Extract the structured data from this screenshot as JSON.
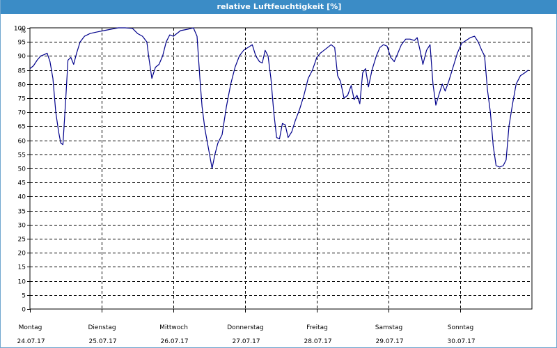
{
  "window": {
    "title": "relative Luftfeuchtigkeit [%]"
  },
  "chart_data": {
    "type": "line",
    "title": "relative Luftfeuchtigkeit [%]",
    "ylabel": "%",
    "xlabel": "",
    "ylim": [
      0,
      100
    ],
    "ytick_step": 5,
    "grid": true,
    "line_color": "#00008b",
    "x_ticks": [
      {
        "day": "Montag",
        "date": "24.07.17"
      },
      {
        "day": "Dienstag",
        "date": "25.07.17"
      },
      {
        "day": "Mittwoch",
        "date": "26.07.17"
      },
      {
        "day": "Donnerstag",
        "date": "27.07.17"
      },
      {
        "day": "Freitag",
        "date": "28.07.17"
      },
      {
        "day": "Samstag",
        "date": "29.07.17"
      },
      {
        "day": "Sonntag",
        "date": "30.07.17"
      }
    ],
    "x_unit": "days since Montag 24.07.17 00:00",
    "xlim": [
      0,
      7
    ],
    "series": [
      {
        "name": "relative Luftfeuchtigkeit",
        "points": [
          [
            0.0,
            85.5
          ],
          [
            0.05,
            86.5
          ],
          [
            0.1,
            88.5
          ],
          [
            0.15,
            90
          ],
          [
            0.2,
            90.5
          ],
          [
            0.24,
            91
          ],
          [
            0.28,
            88
          ],
          [
            0.32,
            82
          ],
          [
            0.36,
            70
          ],
          [
            0.4,
            63
          ],
          [
            0.43,
            59
          ],
          [
            0.46,
            58.5
          ],
          [
            0.5,
            75
          ],
          [
            0.53,
            88.5
          ],
          [
            0.57,
            89.5
          ],
          [
            0.61,
            87
          ],
          [
            0.65,
            91
          ],
          [
            0.7,
            95
          ],
          [
            0.76,
            97
          ],
          [
            0.84,
            98
          ],
          [
            0.93,
            98.5
          ],
          [
            1.03,
            99
          ],
          [
            1.13,
            99.5
          ],
          [
            1.23,
            100
          ],
          [
            1.33,
            100
          ],
          [
            1.43,
            99.8
          ],
          [
            1.5,
            98
          ],
          [
            1.57,
            97
          ],
          [
            1.63,
            95
          ],
          [
            1.66,
            89
          ],
          [
            1.7,
            82
          ],
          [
            1.75,
            86
          ],
          [
            1.8,
            87
          ],
          [
            1.85,
            90
          ],
          [
            1.9,
            95
          ],
          [
            1.95,
            97.5
          ],
          [
            2.0,
            97
          ],
          [
            2.05,
            98
          ],
          [
            2.1,
            99
          ],
          [
            2.2,
            99.5
          ],
          [
            2.28,
            100
          ],
          [
            2.33,
            97
          ],
          [
            2.37,
            82
          ],
          [
            2.4,
            72
          ],
          [
            2.44,
            64
          ],
          [
            2.49,
            57
          ],
          [
            2.54,
            50
          ],
          [
            2.58,
            55
          ],
          [
            2.62,
            59
          ],
          [
            2.68,
            62
          ],
          [
            2.74,
            72
          ],
          [
            2.8,
            80
          ],
          [
            2.86,
            86
          ],
          [
            2.92,
            90
          ],
          [
            2.98,
            92
          ],
          [
            3.04,
            93
          ],
          [
            3.1,
            94
          ],
          [
            3.15,
            90
          ],
          [
            3.2,
            88
          ],
          [
            3.24,
            87.5
          ],
          [
            3.28,
            92
          ],
          [
            3.32,
            90
          ],
          [
            3.36,
            82
          ],
          [
            3.4,
            70
          ],
          [
            3.44,
            61
          ],
          [
            3.48,
            60.5
          ],
          [
            3.52,
            66
          ],
          [
            3.56,
            65.5
          ],
          [
            3.6,
            61
          ],
          [
            3.65,
            63
          ],
          [
            3.7,
            67
          ],
          [
            3.76,
            71
          ],
          [
            3.82,
            76
          ],
          [
            3.88,
            82
          ],
          [
            3.94,
            85
          ],
          [
            4.0,
            89.5
          ],
          [
            4.05,
            91
          ],
          [
            4.1,
            92
          ],
          [
            4.15,
            93
          ],
          [
            4.2,
            94
          ],
          [
            4.25,
            93
          ],
          [
            4.29,
            83
          ],
          [
            4.33,
            81
          ],
          [
            4.38,
            75
          ],
          [
            4.43,
            76
          ],
          [
            4.48,
            79.5
          ],
          [
            4.52,
            74.5
          ],
          [
            4.56,
            76
          ],
          [
            4.6,
            73
          ],
          [
            4.64,
            84
          ],
          [
            4.68,
            85.5
          ],
          [
            4.72,
            79
          ],
          [
            4.77,
            85
          ],
          [
            4.83,
            90
          ],
          [
            4.88,
            93
          ],
          [
            4.93,
            94
          ],
          [
            4.98,
            93.5
          ],
          [
            5.03,
            89.5
          ],
          [
            5.08,
            88
          ],
          [
            5.13,
            91
          ],
          [
            5.18,
            94
          ],
          [
            5.24,
            96
          ],
          [
            5.3,
            96
          ],
          [
            5.36,
            95.5
          ],
          [
            5.4,
            96.5
          ],
          [
            5.44,
            92
          ],
          [
            5.48,
            87
          ],
          [
            5.53,
            92
          ],
          [
            5.58,
            94
          ],
          [
            5.62,
            80
          ],
          [
            5.66,
            72.5
          ],
          [
            5.7,
            76
          ],
          [
            5.75,
            80
          ],
          [
            5.79,
            77.5
          ],
          [
            5.84,
            81
          ],
          [
            5.9,
            86
          ],
          [
            5.96,
            91
          ],
          [
            6.02,
            94.5
          ],
          [
            6.08,
            95.5
          ],
          [
            6.14,
            96.5
          ],
          [
            6.2,
            97
          ],
          [
            6.25,
            95
          ],
          [
            6.3,
            92
          ],
          [
            6.34,
            90
          ],
          [
            6.38,
            78
          ],
          [
            6.42,
            70
          ],
          [
            6.46,
            58
          ],
          [
            6.5,
            51
          ],
          [
            6.55,
            50.5
          ],
          [
            6.6,
            51
          ],
          [
            6.64,
            53
          ],
          [
            6.68,
            65
          ],
          [
            6.73,
            73
          ],
          [
            6.78,
            80
          ],
          [
            6.84,
            83
          ],
          [
            6.9,
            84
          ],
          [
            6.95,
            85
          ]
        ]
      }
    ]
  }
}
